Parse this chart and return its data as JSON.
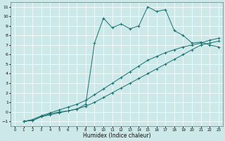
{
  "xlabel": "Humidex (Indice chaleur)",
  "bg_color": "#cce8e8",
  "grid_color": "#ffffff",
  "line_color": "#1a7070",
  "xlim": [
    -0.5,
    23.5
  ],
  "ylim": [
    -1.5,
    11.5
  ],
  "xticks": [
    0,
    1,
    2,
    3,
    4,
    5,
    6,
    7,
    8,
    9,
    10,
    11,
    12,
    13,
    14,
    15,
    16,
    17,
    18,
    19,
    20,
    21,
    22,
    23
  ],
  "yticks": [
    -1,
    0,
    1,
    2,
    3,
    4,
    5,
    6,
    7,
    8,
    9,
    10,
    11
  ],
  "series": [
    {
      "x": [
        1,
        2,
        3,
        4,
        5,
        6,
        7,
        8,
        9,
        10,
        11,
        12,
        13,
        14,
        15,
        16,
        17,
        18,
        19,
        20,
        21,
        22,
        23
      ],
      "y": [
        -1,
        -0.9,
        -0.5,
        -0.3,
        -0.1,
        0.1,
        0.3,
        0.6,
        1.0,
        1.5,
        2.0,
        2.5,
        3.0,
        3.5,
        4.0,
        4.5,
        5.0,
        5.5,
        6.0,
        6.5,
        7.0,
        7.2,
        7.4
      ]
    },
    {
      "x": [
        1,
        2,
        3,
        4,
        5,
        6,
        7,
        8,
        9,
        10,
        11,
        12,
        13,
        14,
        15,
        16,
        17,
        18,
        19,
        20,
        21,
        22,
        23
      ],
      "y": [
        -1,
        -0.8,
        -0.4,
        -0.1,
        0.2,
        0.5,
        0.8,
        1.2,
        1.8,
        2.4,
        3.0,
        3.6,
        4.2,
        4.8,
        5.4,
        5.8,
        6.2,
        6.5,
        6.8,
        7.0,
        7.2,
        7.5,
        7.7
      ]
    },
    {
      "x": [
        1,
        2,
        3,
        4,
        5,
        6,
        7,
        8,
        9,
        10,
        11,
        12,
        13,
        14,
        15,
        16,
        17,
        18,
        19,
        20,
        21,
        22,
        23
      ],
      "y": [
        -1,
        -0.9,
        -0.5,
        -0.2,
        0.0,
        0.1,
        0.3,
        0.8,
        7.2,
        9.8,
        8.8,
        9.2,
        8.7,
        9.0,
        11.0,
        10.5,
        10.7,
        8.5,
        8.0,
        7.2,
        7.3,
        7.0,
        6.8
      ]
    }
  ]
}
